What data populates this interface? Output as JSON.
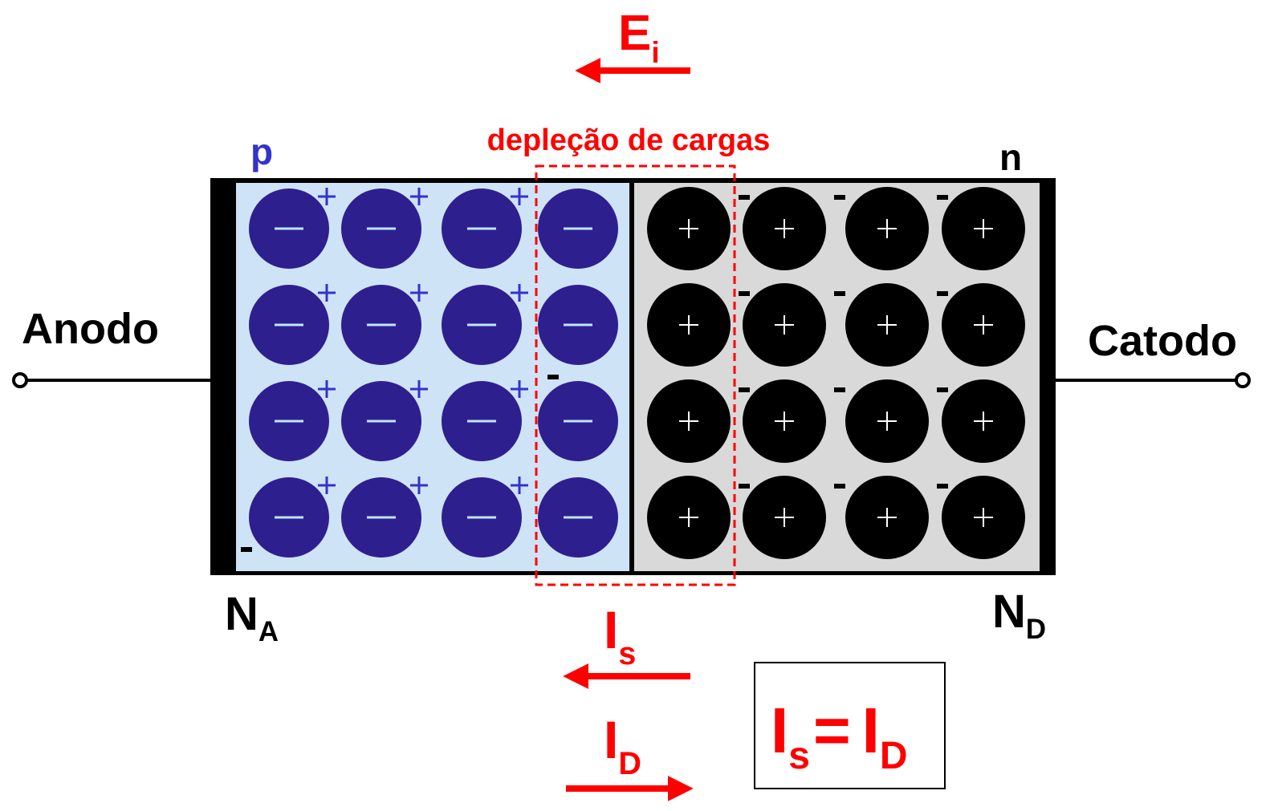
{
  "field": {
    "symbol": "E",
    "subscript": "i"
  },
  "depletion_label": "depleção de cargas",
  "regions": {
    "p": "p",
    "n": "n"
  },
  "terminals": {
    "anode": "Anodo",
    "cathode": "Catodo"
  },
  "doping": {
    "acceptor": {
      "symbol": "N",
      "subscript": "A"
    },
    "donor": {
      "symbol": "N",
      "subscript": "D"
    }
  },
  "currents": {
    "saturation": {
      "symbol": "I",
      "subscript": "s"
    },
    "diffusion": {
      "symbol": "I",
      "subscript": "D"
    }
  },
  "equation": {
    "left": {
      "symbol": "I",
      "subscript": "s"
    },
    "operator": "=",
    "right": {
      "symbol": "I",
      "subscript": "D"
    }
  }
}
